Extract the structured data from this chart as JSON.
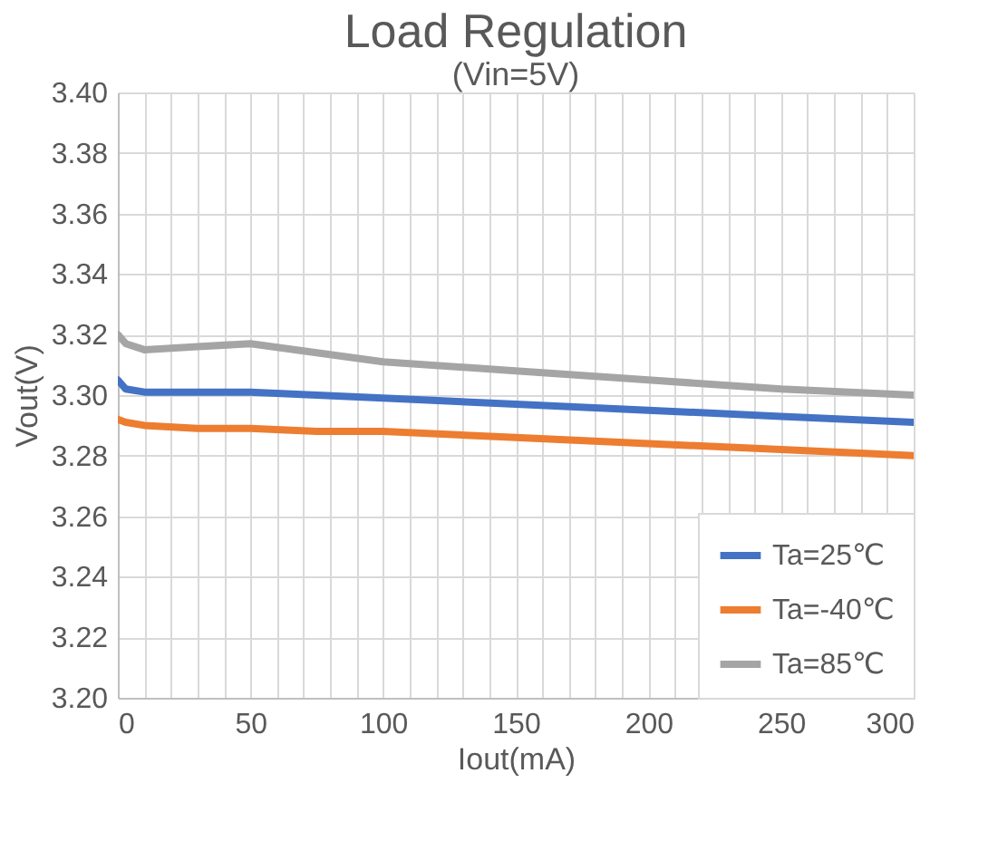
{
  "chart_data": {
    "type": "line",
    "title": "Load Regulation",
    "subtitle": "(Vin=5V)",
    "xlabel": "Iout(mA)",
    "ylabel": "Vout(V)",
    "x": [
      0,
      3,
      10,
      30,
      50,
      75,
      100,
      150,
      200,
      250,
      300
    ],
    "series": [
      {
        "name": "Ta=25℃",
        "color": "#4472c4",
        "values": [
          3.305,
          3.302,
          3.301,
          3.301,
          3.301,
          3.3,
          3.299,
          3.297,
          3.295,
          3.293,
          3.291
        ]
      },
      {
        "name": "Ta=-40℃",
        "color": "#ed7d31",
        "values": [
          3.292,
          3.291,
          3.29,
          3.289,
          3.289,
          3.288,
          3.288,
          3.286,
          3.284,
          3.282,
          3.28
        ]
      },
      {
        "name": "Ta=85℃",
        "color": "#a5a5a5",
        "values": [
          3.32,
          3.317,
          3.315,
          3.316,
          3.317,
          3.314,
          3.311,
          3.308,
          3.305,
          3.302,
          3.3
        ]
      }
    ],
    "xlim": [
      0,
      300
    ],
    "ylim": [
      3.2,
      3.4
    ],
    "xticks": [
      0,
      {
        "value": 10,
        "label": null
      },
      {
        "value": 20,
        "label": null
      },
      {
        "value": 30,
        "label": null
      },
      {
        "value": 40,
        "label": null
      },
      50,
      {
        "value": 60,
        "label": null
      },
      {
        "value": 70,
        "label": null
      },
      {
        "value": 80,
        "label": null
      },
      {
        "value": 90,
        "label": null
      },
      100,
      {
        "value": 110,
        "label": null
      },
      {
        "value": 120,
        "label": null
      },
      {
        "value": 130,
        "label": null
      },
      {
        "value": 140,
        "label": null
      },
      150,
      {
        "value": 160,
        "label": null
      },
      {
        "value": 170,
        "label": null
      },
      {
        "value": 180,
        "label": null
      },
      {
        "value": 190,
        "label": null
      },
      200,
      {
        "value": 210,
        "label": null
      },
      {
        "value": 220,
        "label": null
      },
      {
        "value": 230,
        "label": null
      },
      {
        "value": 240,
        "label": null
      },
      250,
      {
        "value": 260,
        "label": null
      },
      {
        "value": 270,
        "label": null
      },
      {
        "value": 280,
        "label": null
      },
      {
        "value": 290,
        "label": null
      },
      300
    ],
    "yticks": [
      {
        "value": 3.2,
        "label": "3.20"
      },
      {
        "value": 3.22,
        "label": "3.22"
      },
      {
        "value": 3.24,
        "label": "3.24"
      },
      {
        "value": 3.26,
        "label": "3.26"
      },
      {
        "value": 3.28,
        "label": "3.28"
      },
      {
        "value": 3.3,
        "label": "3.30"
      },
      {
        "value": 3.32,
        "label": "3.32"
      },
      {
        "value": 3.34,
        "label": "3.34"
      },
      {
        "value": 3.36,
        "label": "3.36"
      },
      {
        "value": 3.38,
        "label": "3.38"
      },
      {
        "value": 3.4,
        "label": "3.40"
      }
    ],
    "grid": true,
    "legend": "bottom right",
    "marker": "none",
    "line_style": "solid"
  }
}
